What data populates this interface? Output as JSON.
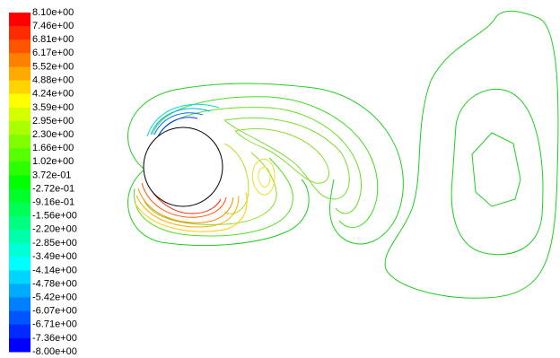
{
  "chart_data": {
    "type": "contour",
    "colorbar": {
      "ticks": [
        {
          "value": 8.1,
          "label": "8.10e+00"
        },
        {
          "value": 7.46,
          "label": "7.46e+00"
        },
        {
          "value": 6.81,
          "label": "6.81e+00"
        },
        {
          "value": 6.17,
          "label": "6.17e+00"
        },
        {
          "value": 5.52,
          "label": "5.52e+00"
        },
        {
          "value": 4.88,
          "label": "4.88e+00"
        },
        {
          "value": 4.24,
          "label": "4.24e+00"
        },
        {
          "value": 3.59,
          "label": "3.59e+00"
        },
        {
          "value": 2.95,
          "label": "2.95e+00"
        },
        {
          "value": 2.3,
          "label": "2.30e+00"
        },
        {
          "value": 1.66,
          "label": "1.66e+00"
        },
        {
          "value": 1.02,
          "label": "1.02e+00"
        },
        {
          "value": 0.372,
          "label": "3.72e-01"
        },
        {
          "value": -0.272,
          "label": "-2.72e-01"
        },
        {
          "value": -0.916,
          "label": "-9.16e-01"
        },
        {
          "value": -1.56,
          "label": "-1.56e+00"
        },
        {
          "value": -2.2,
          "label": "-2.20e+00"
        },
        {
          "value": -2.85,
          "label": "-2.85e+00"
        },
        {
          "value": -3.49,
          "label": "-3.49e+00"
        },
        {
          "value": -4.14,
          "label": "-4.14e+00"
        },
        {
          "value": -4.78,
          "label": "-4.78e+00"
        },
        {
          "value": -5.42,
          "label": "-5.42e+00"
        },
        {
          "value": -6.07,
          "label": "-6.07e+00"
        },
        {
          "value": -6.71,
          "label": "-6.71e+00"
        },
        {
          "value": -7.36,
          "label": "-7.36e+00"
        },
        {
          "value": -8.0,
          "label": "-8.00e+00"
        }
      ],
      "colors": [
        "#ff0000",
        "#ffff00",
        "#00ff00",
        "#00ffff",
        "#0000ff"
      ]
    }
  }
}
